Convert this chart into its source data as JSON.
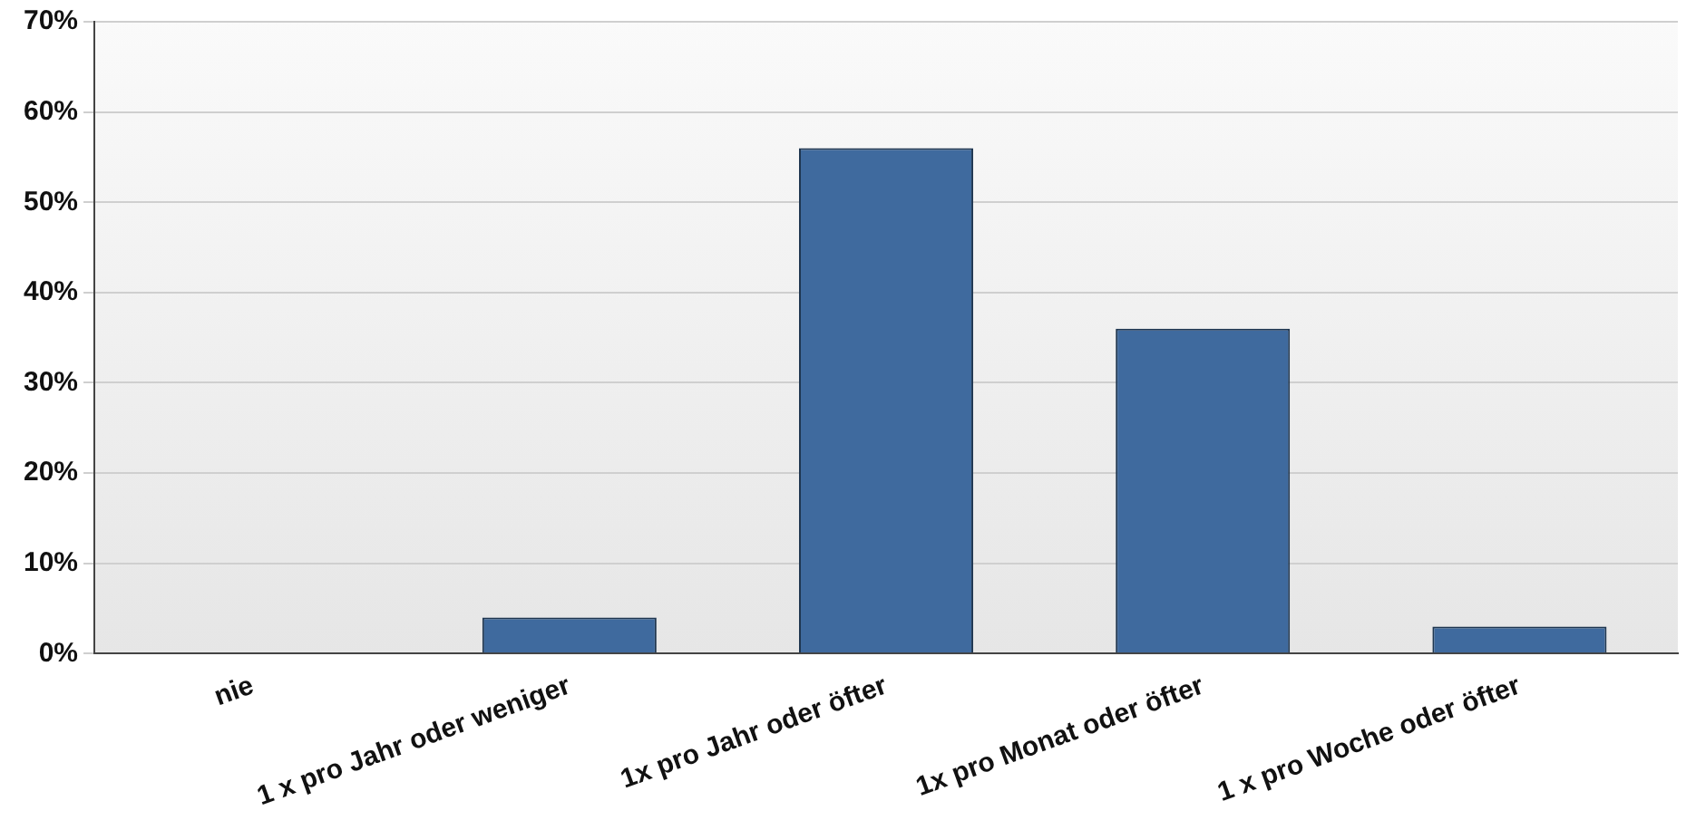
{
  "chart_data": {
    "type": "bar",
    "categories": [
      "nie",
      "1 x pro Jahr oder weniger",
      "1x pro Jahr oder öfter",
      "1x pro Monat oder öfter",
      "1 x pro Woche oder öfter"
    ],
    "values": [
      0,
      4,
      56,
      36,
      3
    ],
    "color": "#3f6a9e",
    "ylim": [
      0,
      70
    ],
    "yticks": [
      {
        "value": 0,
        "label": "0%"
      },
      {
        "value": 10,
        "label": "10%"
      },
      {
        "value": 20,
        "label": "20%"
      },
      {
        "value": 30,
        "label": "30%"
      },
      {
        "value": 40,
        "label": "40%"
      },
      {
        "value": 50,
        "label": "50%"
      },
      {
        "value": 60,
        "label": "60%"
      },
      {
        "value": 70,
        "label": "70%"
      }
    ],
    "grid": "y",
    "legend": false
  }
}
